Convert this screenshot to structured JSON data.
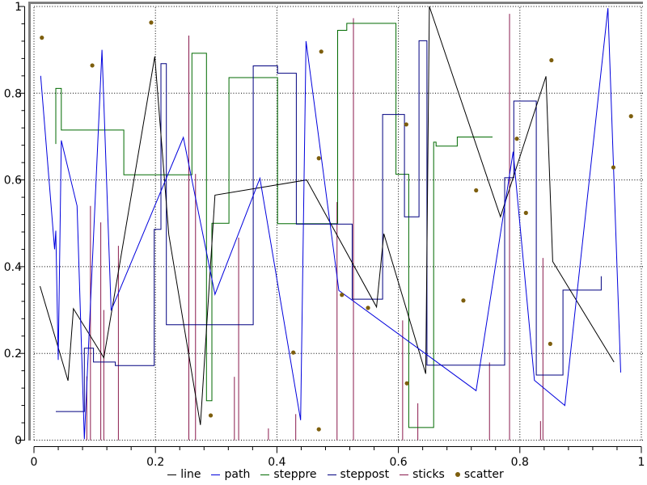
{
  "chart_data": {
    "type": "mixed",
    "title": "",
    "xlabel": "",
    "ylabel": "",
    "xlim": [
      0,
      1
    ],
    "ylim": [
      0,
      1
    ],
    "grid": {
      "style": "dotted",
      "color": "#000000",
      "interval": 0.2
    },
    "frame_color": "#7f7f7f",
    "axis_color": "#000000",
    "legend_position": "bottom-center",
    "axis": {
      "x": {
        "ticks": [
          0,
          0.2,
          0.4,
          0.6,
          0.8,
          1
        ],
        "labels": [
          "0",
          "0.2",
          "0.4",
          "0.6",
          "0.8",
          "1"
        ],
        "minor_step": 0.04
      },
      "y": {
        "ticks": [
          0,
          0.2,
          0.4,
          0.6,
          0.8,
          1
        ],
        "labels": [
          "0",
          "0.2",
          "0.4",
          "0.6",
          "0.8",
          "1"
        ],
        "minor_step": 0.04
      }
    },
    "series": [
      {
        "name": "line",
        "type": "line",
        "color": "#000000",
        "points": [
          [
            0.01,
            0.355
          ],
          [
            0.056,
            0.137
          ],
          [
            0.065,
            0.303
          ],
          [
            0.115,
            0.19
          ],
          [
            0.199,
            0.885
          ],
          [
            0.222,
            0.474
          ],
          [
            0.274,
            0.035
          ],
          [
            0.298,
            0.565
          ],
          [
            0.449,
            0.6
          ],
          [
            0.564,
            0.307
          ],
          [
            0.576,
            0.476
          ],
          [
            0.645,
            0.153
          ],
          [
            0.651,
            1.0
          ],
          [
            0.768,
            0.515
          ],
          [
            0.843,
            0.839
          ],
          [
            0.854,
            0.412
          ],
          [
            0.955,
            0.18
          ]
        ]
      },
      {
        "name": "path",
        "type": "line",
        "color": "#0000dd",
        "points": [
          [
            0.011,
            0.84
          ],
          [
            0.034,
            0.44
          ],
          [
            0.036,
            0.483
          ],
          [
            0.04,
            0.185
          ],
          [
            0.045,
            0.691
          ],
          [
            0.071,
            0.54
          ],
          [
            0.083,
            0.002
          ],
          [
            0.112,
            0.9
          ],
          [
            0.127,
            0.299
          ],
          [
            0.246,
            0.698
          ],
          [
            0.298,
            0.336
          ],
          [
            0.372,
            0.604
          ],
          [
            0.439,
            0.046
          ],
          [
            0.448,
            0.92
          ],
          [
            0.502,
            0.345
          ],
          [
            0.728,
            0.114
          ],
          [
            0.789,
            0.665
          ],
          [
            0.824,
            0.138
          ],
          [
            0.874,
            0.08
          ],
          [
            0.945,
            0.996
          ],
          [
            0.966,
            0.156
          ]
        ]
      },
      {
        "name": "steppre",
        "type": "step",
        "color": "#006a00",
        "vertices": [
          [
            0.036,
            0.683
          ],
          [
            0.036,
            0.811
          ],
          [
            0.045,
            0.811
          ],
          [
            0.045,
            0.715
          ],
          [
            0.148,
            0.715
          ],
          [
            0.148,
            0.612
          ],
          [
            0.26,
            0.612
          ],
          [
            0.26,
            0.892
          ],
          [
            0.284,
            0.892
          ],
          [
            0.284,
            0.091
          ],
          [
            0.293,
            0.091
          ],
          [
            0.293,
            0.5
          ],
          [
            0.321,
            0.5
          ],
          [
            0.321,
            0.836
          ],
          [
            0.401,
            0.836
          ],
          [
            0.401,
            0.499
          ],
          [
            0.5,
            0.499
          ],
          [
            0.5,
            0.945
          ],
          [
            0.515,
            0.945
          ],
          [
            0.515,
            0.961
          ],
          [
            0.596,
            0.961
          ],
          [
            0.596,
            0.613
          ],
          [
            0.617,
            0.613
          ],
          [
            0.617,
            0.029
          ],
          [
            0.658,
            0.029
          ],
          [
            0.658,
            0.687
          ],
          [
            0.662,
            0.687
          ],
          [
            0.662,
            0.678
          ],
          [
            0.697,
            0.678
          ],
          [
            0.697,
            0.699
          ],
          [
            0.755,
            0.699
          ]
        ]
      },
      {
        "name": "steppost",
        "type": "step",
        "color": "#000080",
        "vertices": [
          [
            0.036,
            0.066
          ],
          [
            0.083,
            0.066
          ],
          [
            0.083,
            0.212
          ],
          [
            0.098,
            0.212
          ],
          [
            0.098,
            0.18
          ],
          [
            0.134,
            0.18
          ],
          [
            0.134,
            0.172
          ],
          [
            0.198,
            0.172
          ],
          [
            0.198,
            0.486
          ],
          [
            0.209,
            0.486
          ],
          [
            0.209,
            0.868
          ],
          [
            0.218,
            0.868
          ],
          [
            0.218,
            0.266
          ],
          [
            0.361,
            0.266
          ],
          [
            0.361,
            0.863
          ],
          [
            0.401,
            0.863
          ],
          [
            0.401,
            0.846
          ],
          [
            0.432,
            0.846
          ],
          [
            0.432,
            0.498
          ],
          [
            0.524,
            0.498
          ],
          [
            0.524,
            0.325
          ],
          [
            0.574,
            0.325
          ],
          [
            0.574,
            0.751
          ],
          [
            0.61,
            0.751
          ],
          [
            0.61,
            0.515
          ],
          [
            0.634,
            0.515
          ],
          [
            0.634,
            0.921
          ],
          [
            0.647,
            0.921
          ],
          [
            0.647,
            0.173
          ],
          [
            0.775,
            0.173
          ],
          [
            0.775,
            0.605
          ],
          [
            0.79,
            0.605
          ],
          [
            0.79,
            0.782
          ],
          [
            0.827,
            0.782
          ],
          [
            0.827,
            0.15
          ],
          [
            0.871,
            0.15
          ],
          [
            0.871,
            0.346
          ],
          [
            0.934,
            0.346
          ],
          [
            0.934,
            0.378
          ]
        ]
      },
      {
        "name": "sticks",
        "type": "sticks",
        "color": "#8a1a4d",
        "points": [
          [
            0.087,
            0.147
          ],
          [
            0.093,
            0.54
          ],
          [
            0.11,
            0.502
          ],
          [
            0.115,
            0.3
          ],
          [
            0.139,
            0.448
          ],
          [
            0.255,
            0.933
          ],
          [
            0.266,
            0.614
          ],
          [
            0.33,
            0.146
          ],
          [
            0.337,
            0.467
          ],
          [
            0.386,
            0.027
          ],
          [
            0.431,
            0.06
          ],
          [
            0.499,
            0.549
          ],
          [
            0.526,
            0.973
          ],
          [
            0.607,
            0.276
          ],
          [
            0.632,
            0.085
          ],
          [
            0.75,
            0.179
          ],
          [
            0.783,
            0.983
          ],
          [
            0.834,
            0.044
          ],
          [
            0.838,
            0.42
          ]
        ]
      },
      {
        "name": "scatter",
        "type": "scatter",
        "color": "#7d5e0d",
        "points": [
          [
            0.013,
            0.928
          ],
          [
            0.096,
            0.864
          ],
          [
            0.193,
            0.963
          ],
          [
            0.291,
            0.057
          ],
          [
            0.427,
            0.202
          ],
          [
            0.473,
            0.896
          ],
          [
            0.469,
            0.65
          ],
          [
            0.469,
            0.025
          ],
          [
            0.507,
            0.335
          ],
          [
            0.55,
            0.305
          ],
          [
            0.613,
            0.728
          ],
          [
            0.614,
            0.131
          ],
          [
            0.707,
            0.322
          ],
          [
            0.728,
            0.576
          ],
          [
            0.795,
            0.695
          ],
          [
            0.81,
            0.524
          ],
          [
            0.852,
            0.876
          ],
          [
            0.85,
            0.222
          ],
          [
            0.954,
            0.629
          ],
          [
            0.983,
            0.747
          ]
        ]
      }
    ],
    "legend": [
      {
        "label": "line",
        "marker": "dash",
        "color": "#000000"
      },
      {
        "label": "path",
        "marker": "dash",
        "color": "#0000dd"
      },
      {
        "label": "steppre",
        "marker": "dash",
        "color": "#006a00"
      },
      {
        "label": "steppost",
        "marker": "dash",
        "color": "#000080"
      },
      {
        "label": "sticks",
        "marker": "dash",
        "color": "#8a1a4d"
      },
      {
        "label": "scatter",
        "marker": "dot",
        "color": "#7d5e0d"
      }
    ]
  }
}
